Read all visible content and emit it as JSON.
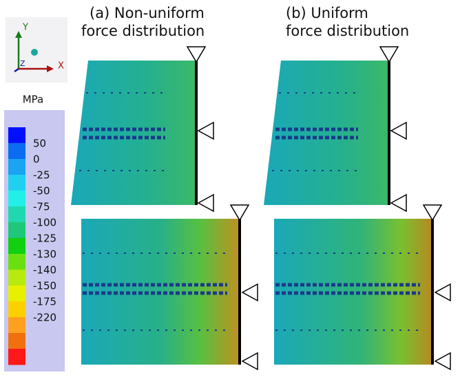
{
  "axes_triad": {
    "y": "Y",
    "x": "X",
    "z": "Z"
  },
  "panels": [
    {
      "title_lines": [
        "(a) Non-uniform",
        "force distribution"
      ]
    },
    {
      "title_lines": [
        "(b) Uniform",
        "force distribution"
      ]
    }
  ],
  "legend": {
    "unit": "MPa",
    "labels": [
      "50",
      "0",
      "-25",
      "-50",
      "-75",
      "-100",
      "-125",
      "-130",
      "-140",
      "-150",
      "-175",
      "-220"
    ],
    "band_colors": [
      "#0010ff",
      "#0a6cf0",
      "#1aa4f2",
      "#20d0f0",
      "#22f0e8",
      "#20d8b0",
      "#1ec878",
      "#10d010",
      "#6ae010",
      "#b8ea10",
      "#e6f000",
      "#ffd000",
      "#ffa020",
      "#f07010",
      "#ff1818"
    ]
  }
}
